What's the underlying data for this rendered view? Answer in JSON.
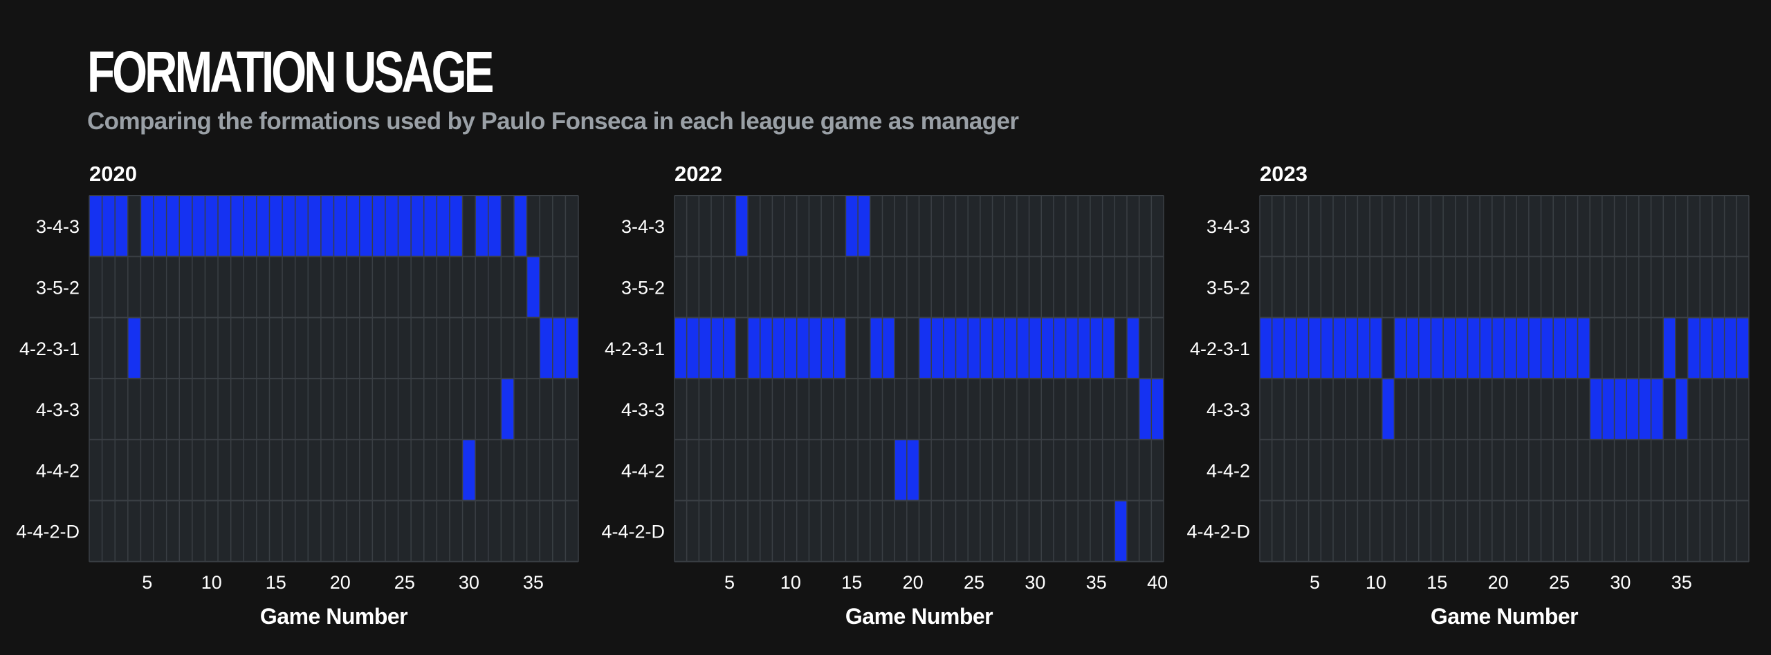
{
  "header": {
    "title": "FORMATION USAGE",
    "subtitle": "Comparing the formations used by Paulo Fonseca in each league game as manager"
  },
  "colors": {
    "background": "#131313",
    "panel": "#22262a",
    "grid": "#3a3f44",
    "accent": "#1532f2",
    "subtitle": "#9aa0a6",
    "text": "#ffffff"
  },
  "chart_data": [
    {
      "type": "heatmap",
      "title": "2020",
      "xlabel": "Game Number",
      "ylabel": "",
      "categories": [
        "3-4-3",
        "3-5-2",
        "4-2-3-1",
        "4-3-3",
        "4-4-2",
        "4-4-2-D"
      ],
      "x_ticks": [
        5,
        10,
        15,
        20,
        25,
        30,
        35
      ],
      "games": 38,
      "formation_by_game": [
        "3-4-3",
        "3-4-3",
        "3-4-3",
        "4-2-3-1",
        "3-4-3",
        "3-4-3",
        "3-4-3",
        "3-4-3",
        "3-4-3",
        "3-4-3",
        "3-4-3",
        "3-4-3",
        "3-4-3",
        "3-4-3",
        "3-4-3",
        "3-4-3",
        "3-4-3",
        "3-4-3",
        "3-4-3",
        "3-4-3",
        "3-4-3",
        "3-4-3",
        "3-4-3",
        "3-4-3",
        "3-4-3",
        "3-4-3",
        "3-4-3",
        "3-4-3",
        "3-4-3",
        "4-4-2",
        "3-4-3",
        "3-4-3",
        "4-3-3",
        "3-4-3",
        "3-5-2",
        "4-2-3-1",
        "4-2-3-1",
        "4-2-3-1"
      ]
    },
    {
      "type": "heatmap",
      "title": "2022",
      "xlabel": "Game Number",
      "ylabel": "",
      "categories": [
        "3-4-3",
        "3-5-2",
        "4-2-3-1",
        "4-3-3",
        "4-4-2",
        "4-4-2-D"
      ],
      "x_ticks": [
        5,
        10,
        15,
        20,
        25,
        30,
        35,
        40
      ],
      "games": 40,
      "formation_by_game": [
        "4-2-3-1",
        "4-2-3-1",
        "4-2-3-1",
        "4-2-3-1",
        "4-2-3-1",
        "3-4-3",
        "4-2-3-1",
        "4-2-3-1",
        "4-2-3-1",
        "4-2-3-1",
        "4-2-3-1",
        "4-2-3-1",
        "4-2-3-1",
        "4-2-3-1",
        "3-4-3",
        "3-4-3",
        "4-2-3-1",
        "4-2-3-1",
        "4-4-2",
        "4-4-2",
        "4-2-3-1",
        "4-2-3-1",
        "4-2-3-1",
        "4-2-3-1",
        "4-2-3-1",
        "4-2-3-1",
        "4-2-3-1",
        "4-2-3-1",
        "4-2-3-1",
        "4-2-3-1",
        "4-2-3-1",
        "4-2-3-1",
        "4-2-3-1",
        "4-2-3-1",
        "4-2-3-1",
        "4-2-3-1",
        "4-4-2-D",
        "4-2-3-1",
        "4-3-3",
        "4-3-3"
      ]
    },
    {
      "type": "heatmap",
      "title": "2023",
      "xlabel": "Game Number",
      "ylabel": "",
      "categories": [
        "3-4-3",
        "3-5-2",
        "4-2-3-1",
        "4-3-3",
        "4-4-2",
        "4-4-2-D"
      ],
      "x_ticks": [
        5,
        10,
        15,
        20,
        25,
        30,
        35
      ],
      "games": 40,
      "formation_by_game": [
        "4-2-3-1",
        "4-2-3-1",
        "4-2-3-1",
        "4-2-3-1",
        "4-2-3-1",
        "4-2-3-1",
        "4-2-3-1",
        "4-2-3-1",
        "4-2-3-1",
        "4-2-3-1",
        "4-3-3",
        "4-2-3-1",
        "4-2-3-1",
        "4-2-3-1",
        "4-2-3-1",
        "4-2-3-1",
        "4-2-3-1",
        "4-2-3-1",
        "4-2-3-1",
        "4-2-3-1",
        "4-2-3-1",
        "4-2-3-1",
        "4-2-3-1",
        "4-2-3-1",
        "4-2-3-1",
        "4-2-3-1",
        "4-2-3-1",
        "4-3-3",
        "4-3-3",
        "4-3-3",
        "4-3-3",
        "4-3-3",
        "4-3-3",
        "4-2-3-1",
        "4-3-3",
        "4-2-3-1",
        "4-2-3-1",
        "4-2-3-1",
        "4-2-3-1",
        "4-2-3-1"
      ]
    }
  ]
}
